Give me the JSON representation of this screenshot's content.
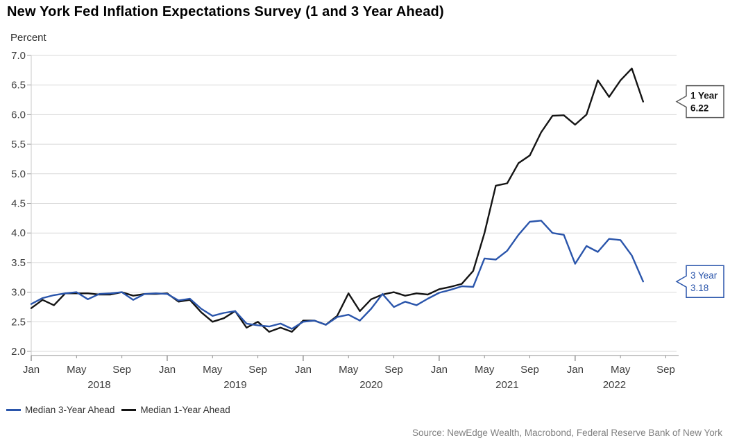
{
  "header": {
    "title": "New York Fed Inflation Expectations Survey (1 and 3 Year Ahead)"
  },
  "chart_data": {
    "type": "line",
    "title": "New York Fed Inflation Expectations Survey (1 and 3 Year Ahead)",
    "ylabel": "Percent",
    "xlabel": "",
    "ylim": [
      2.0,
      7.0
    ],
    "ytick_step": 0.5,
    "grid": "horizontal",
    "legend_position": "bottom-left",
    "x_start": "2018-01",
    "x_end": "2022-07",
    "x_tick_month_labels": [
      "Jan",
      "May",
      "Sep"
    ],
    "x_year_labels": [
      "2018",
      "2019",
      "2020",
      "2021",
      "2022"
    ],
    "series": [
      {
        "name": "Median 3-Year Ahead",
        "color": "#2a55ab",
        "values": [
          2.8,
          2.9,
          2.95,
          2.98,
          3.0,
          2.88,
          2.97,
          2.98,
          3.0,
          2.87,
          2.97,
          2.98,
          2.97,
          2.86,
          2.89,
          2.72,
          2.6,
          2.65,
          2.68,
          2.47,
          2.44,
          2.42,
          2.47,
          2.38,
          2.5,
          2.52,
          2.45,
          2.58,
          2.62,
          2.52,
          2.72,
          2.97,
          2.75,
          2.84,
          2.78,
          2.89,
          2.99,
          3.04,
          3.1,
          3.09,
          3.57,
          3.55,
          3.7,
          3.97,
          4.19,
          4.21,
          4.0,
          3.97,
          3.48,
          3.78,
          3.68,
          3.9,
          3.88,
          3.62,
          3.18
        ]
      },
      {
        "name": "Median 1-Year Ahead",
        "color": "#141414",
        "values": [
          2.73,
          2.87,
          2.78,
          2.98,
          2.98,
          2.98,
          2.96,
          2.96,
          3.0,
          2.94,
          2.97,
          2.97,
          2.98,
          2.84,
          2.87,
          2.66,
          2.5,
          2.56,
          2.68,
          2.4,
          2.5,
          2.33,
          2.4,
          2.33,
          2.52,
          2.52,
          2.45,
          2.6,
          2.98,
          2.68,
          2.88,
          2.96,
          3.0,
          2.94,
          2.98,
          2.96,
          3.05,
          3.09,
          3.14,
          3.36,
          4.0,
          4.8,
          4.84,
          5.18,
          5.31,
          5.7,
          5.98,
          5.99,
          5.83,
          6.0,
          6.58,
          6.3,
          6.58,
          6.78,
          6.22
        ]
      }
    ],
    "callouts": [
      {
        "label": "1 Year",
        "value": "6.22",
        "color": "#5a5a5a",
        "text_color": "#111111",
        "bold": true
      },
      {
        "label": "3 Year",
        "value": "3.18",
        "color": "#2a55ab",
        "text_color": "#2a55ab",
        "bold": false
      }
    ]
  },
  "footer": {
    "source": "Source: NewEdge Wealth, Macrobond, Federal Reserve Bank of New York"
  }
}
